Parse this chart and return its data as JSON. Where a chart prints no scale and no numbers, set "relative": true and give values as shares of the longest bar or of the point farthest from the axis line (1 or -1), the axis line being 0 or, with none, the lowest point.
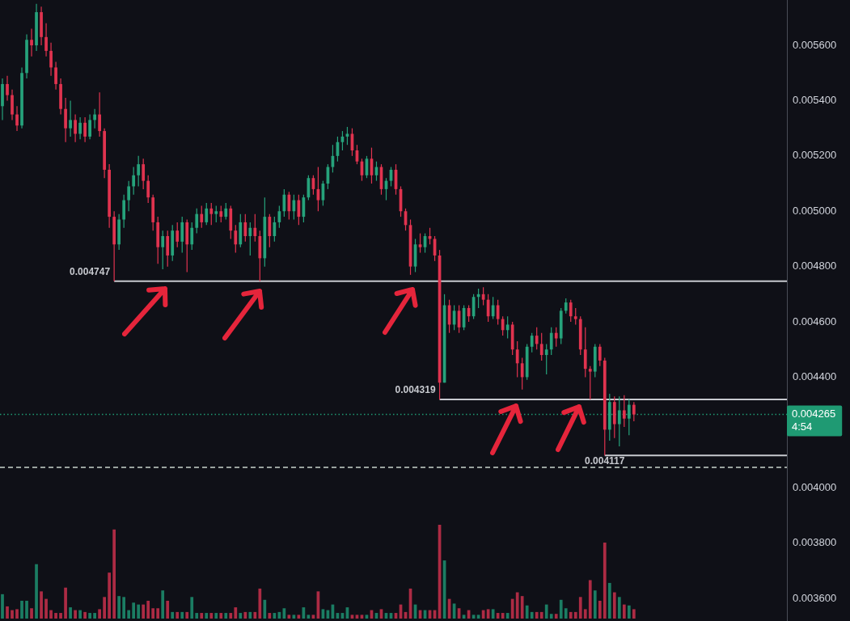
{
  "chart_data": [
    {
      "type": "candlestick",
      "tick_labels": "y",
      "categories": [
        null,
        null,
        null,
        null,
        null,
        null,
        null,
        null,
        null,
        null,
        null,
        null,
        null,
        null,
        null,
        null,
        null,
        null,
        null,
        null,
        null,
        null,
        null,
        null,
        null,
        null,
        null,
        null,
        null,
        null,
        null,
        null,
        null,
        null,
        null,
        null,
        null,
        null,
        null,
        null,
        null,
        null,
        null,
        null,
        null,
        null,
        null,
        null,
        null,
        null,
        null,
        null,
        null,
        null,
        null,
        null,
        null,
        null,
        null,
        null,
        null,
        null,
        null,
        null,
        null,
        null,
        null,
        null,
        null,
        null,
        null,
        null,
        null,
        null,
        null,
        null,
        null,
        null,
        null,
        null,
        null,
        null,
        null,
        null,
        null,
        null,
        null,
        null,
        null,
        null,
        null,
        null,
        null,
        null,
        null,
        null,
        null,
        null,
        null,
        null,
        null,
        null,
        null,
        null,
        null,
        null,
        null,
        null,
        null,
        null,
        null,
        null,
        null,
        null,
        null,
        null,
        null,
        null,
        null,
        null,
        null,
        null,
        null,
        null,
        null,
        null,
        null,
        null,
        null,
        null,
        null,
        null,
        null,
        null,
        null,
        null,
        null,
        null,
        null,
        null,
        null,
        null,
        null,
        null,
        null,
        null,
        null,
        null,
        null,
        null,
        null,
        null,
        null,
        null,
        null,
        null,
        null,
        null,
        null,
        null,
        null,
        null
      ],
      "ohlc": [
        [
          0.00538,
          0.00548,
          0.00533,
          0.00546
        ],
        [
          0.00546,
          0.00549,
          0.0054,
          0.00542
        ],
        [
          0.00542,
          0.00544,
          0.00533,
          0.00535
        ],
        [
          0.00535,
          0.00538,
          0.00529,
          0.00531
        ],
        [
          0.00531,
          0.00552,
          0.0053,
          0.0055
        ],
        [
          0.0055,
          0.00564,
          0.00548,
          0.00562
        ],
        [
          0.00562,
          0.00566,
          0.00556,
          0.0056
        ],
        [
          0.0056,
          0.00575,
          0.00558,
          0.00572
        ],
        [
          0.00572,
          0.00574,
          0.0056,
          0.00563
        ],
        [
          0.00563,
          0.00568,
          0.00556,
          0.00558
        ],
        [
          0.00558,
          0.00561,
          0.00549,
          0.00552
        ],
        [
          0.00552,
          0.00554,
          0.00544,
          0.00546
        ],
        [
          0.00546,
          0.00548,
          0.00535,
          0.00537
        ],
        [
          0.00537,
          0.00541,
          0.00525,
          0.0053
        ],
        [
          0.0053,
          0.0054,
          0.00527,
          0.00533
        ],
        [
          0.00533,
          0.00535,
          0.00525,
          0.00528
        ],
        [
          0.00528,
          0.00534,
          0.00526,
          0.00532
        ],
        [
          0.00532,
          0.00534,
          0.00525,
          0.00527
        ],
        [
          0.00527,
          0.00535,
          0.00526,
          0.00533
        ],
        [
          0.00533,
          0.00537,
          0.0053,
          0.00535
        ],
        [
          0.00535,
          0.00543,
          0.00527,
          0.00529
        ],
        [
          0.00529,
          0.0053,
          0.00512,
          0.00515
        ],
        [
          0.00515,
          0.00517,
          0.00494,
          0.00498
        ],
        [
          0.00498,
          0.005,
          0.004747,
          0.00488
        ],
        [
          0.00488,
          0.00499,
          0.00486,
          0.00497
        ],
        [
          0.00497,
          0.00506,
          0.00494,
          0.00504
        ],
        [
          0.00504,
          0.00511,
          0.005,
          0.00509
        ],
        [
          0.00509,
          0.00516,
          0.00506,
          0.00513
        ],
        [
          0.00513,
          0.0052,
          0.00509,
          0.00517
        ],
        [
          0.00517,
          0.00519,
          0.00508,
          0.00511
        ],
        [
          0.00511,
          0.00513,
          0.00503,
          0.00505
        ],
        [
          0.00505,
          0.00506,
          0.00493,
          0.00496
        ],
        [
          0.00496,
          0.00498,
          0.00481,
          0.00487
        ],
        [
          0.00487,
          0.00493,
          0.00479,
          0.00491
        ],
        [
          0.00491,
          0.00493,
          0.0048,
          0.00484
        ],
        [
          0.00484,
          0.00495,
          0.00482,
          0.00493
        ],
        [
          0.00493,
          0.00496,
          0.00487,
          0.00489
        ],
        [
          0.00489,
          0.00498,
          0.00485,
          0.00496
        ],
        [
          0.00496,
          0.00497,
          0.00478,
          0.00488
        ],
        [
          0.00488,
          0.00496,
          0.00486,
          0.00494
        ],
        [
          0.00494,
          0.00501,
          0.00492,
          0.00499
        ],
        [
          0.00499,
          0.00502,
          0.00494,
          0.00496
        ],
        [
          0.00496,
          0.00503,
          0.00495,
          0.00501
        ],
        [
          0.00501,
          0.00503,
          0.00495,
          0.00499
        ],
        [
          0.00499,
          0.00502,
          0.00496,
          0.005
        ],
        [
          0.005,
          0.00502,
          0.00496,
          0.00498
        ],
        [
          0.00498,
          0.00503,
          0.00497,
          0.00501
        ],
        [
          0.00501,
          0.00502,
          0.0049,
          0.00493
        ],
        [
          0.00493,
          0.00495,
          0.00485,
          0.00488
        ],
        [
          0.00488,
          0.00499,
          0.00487,
          0.00496
        ],
        [
          0.00496,
          0.00499,
          0.00489,
          0.00491
        ],
        [
          0.00491,
          0.00496,
          0.00484,
          0.00494
        ],
        [
          0.00494,
          0.00499,
          0.00489,
          0.00491
        ],
        [
          0.00491,
          0.00493,
          0.004747,
          0.00483
        ],
        [
          0.00483,
          0.00505,
          0.0048,
          0.00498
        ],
        [
          0.00498,
          0.00499,
          0.00487,
          0.00491
        ],
        [
          0.00491,
          0.00498,
          0.00489,
          0.00496
        ],
        [
          0.00496,
          0.00502,
          0.00494,
          0.005
        ],
        [
          0.005,
          0.00508,
          0.00498,
          0.00506
        ],
        [
          0.00506,
          0.00507,
          0.00497,
          0.005
        ],
        [
          0.005,
          0.00506,
          0.00497,
          0.00504
        ],
        [
          0.00504,
          0.00506,
          0.00495,
          0.00498
        ],
        [
          0.00498,
          0.00506,
          0.00496,
          0.00505
        ],
        [
          0.00505,
          0.00513,
          0.00504,
          0.00512
        ],
        [
          0.00512,
          0.00513,
          0.00506,
          0.00508
        ],
        [
          0.00508,
          0.00516,
          0.005,
          0.00504
        ],
        [
          0.00504,
          0.00511,
          0.00502,
          0.0051
        ],
        [
          0.0051,
          0.00517,
          0.00508,
          0.00516
        ],
        [
          0.00516,
          0.00524,
          0.00514,
          0.0052
        ],
        [
          0.0052,
          0.00527,
          0.00518,
          0.00525
        ],
        [
          0.00525,
          0.00529,
          0.00522,
          0.00527
        ],
        [
          0.00527,
          0.005305,
          0.00524,
          0.00528
        ],
        [
          0.00528,
          0.0053,
          0.0052,
          0.00522
        ],
        [
          0.00522,
          0.00524,
          0.00517,
          0.00518
        ],
        [
          0.00518,
          0.00519,
          0.00511,
          0.00513
        ],
        [
          0.00513,
          0.0052,
          0.00512,
          0.00519
        ],
        [
          0.00519,
          0.00523,
          0.0051,
          0.00513
        ],
        [
          0.00513,
          0.00518,
          0.00511,
          0.00516
        ],
        [
          0.00516,
          0.00517,
          0.00506,
          0.00508
        ],
        [
          0.00508,
          0.00512,
          0.00504,
          0.00511
        ],
        [
          0.00511,
          0.00516,
          0.00509,
          0.00515
        ],
        [
          0.00515,
          0.00517,
          0.00506,
          0.00508
        ],
        [
          0.00508,
          0.00509,
          0.00498,
          0.005
        ],
        [
          0.005,
          0.00501,
          0.00493,
          0.00495
        ],
        [
          0.00495,
          0.00497,
          0.00477,
          0.0048
        ],
        [
          0.0048,
          0.0049,
          0.00478,
          0.00488
        ],
        [
          0.00488,
          0.00492,
          0.00485,
          0.00487
        ],
        [
          0.00487,
          0.00492,
          0.00485,
          0.00491
        ],
        [
          0.00491,
          0.00494,
          0.00488,
          0.0049
        ],
        [
          0.0049,
          0.00491,
          0.00482,
          0.00484
        ],
        [
          0.00484,
          0.00486,
          0.004319,
          0.00438
        ],
        [
          0.00438,
          0.0047,
          0.00438,
          0.00466
        ],
        [
          0.00466,
          0.00468,
          0.00456,
          0.00459
        ],
        [
          0.00459,
          0.00466,
          0.00457,
          0.00464
        ],
        [
          0.00464,
          0.00466,
          0.00456,
          0.00458
        ],
        [
          0.00458,
          0.00466,
          0.00457,
          0.00465
        ],
        [
          0.00465,
          0.00466,
          0.0046,
          0.00462
        ],
        [
          0.00462,
          0.0047,
          0.00461,
          0.00469
        ],
        [
          0.00469,
          0.00472,
          0.00465,
          0.0047
        ],
        [
          0.0047,
          0.004725,
          0.00466,
          0.00468
        ],
        [
          0.00468,
          0.0047,
          0.0046,
          0.00462
        ],
        [
          0.00462,
          0.00469,
          0.00461,
          0.00466
        ],
        [
          0.00466,
          0.00468,
          0.00459,
          0.00461
        ],
        [
          0.00461,
          0.00462,
          0.00455,
          0.00457
        ],
        [
          0.00457,
          0.00462,
          0.00454,
          0.00459
        ],
        [
          0.00459,
          0.0046,
          0.00448,
          0.0045
        ],
        [
          0.0045,
          0.00453,
          0.0044,
          0.00445
        ],
        [
          0.00445,
          0.00447,
          0.004355,
          0.0044
        ],
        [
          0.0044,
          0.00452,
          0.00439,
          0.00451
        ],
        [
          0.00451,
          0.00456,
          0.00449,
          0.00455
        ],
        [
          0.00455,
          0.00458,
          0.0045,
          0.00452
        ],
        [
          0.00452,
          0.00456,
          0.00446,
          0.00448
        ],
        [
          0.00448,
          0.00452,
          0.00441,
          0.0045
        ],
        [
          0.0045,
          0.00458,
          0.00448,
          0.00456
        ],
        [
          0.00456,
          0.00458,
          0.00451,
          0.00454
        ],
        [
          0.00454,
          0.00465,
          0.00452,
          0.00464
        ],
        [
          0.00464,
          0.004685,
          0.00463,
          0.00467
        ],
        [
          0.00467,
          0.00468,
          0.0046,
          0.00462
        ],
        [
          0.00462,
          0.00465,
          0.00459,
          0.00461
        ],
        [
          0.00461,
          0.00462,
          0.00448,
          0.0045
        ],
        [
          0.0045,
          0.00458,
          0.0044,
          0.00443
        ],
        [
          0.00443,
          0.00444,
          0.004319,
          0.00442
        ],
        [
          0.00442,
          0.00452,
          0.0044,
          0.00451
        ],
        [
          0.00451,
          0.00452,
          0.00444,
          0.00446
        ],
        [
          0.00446,
          0.00447,
          0.004117,
          0.00421
        ],
        [
          0.00421,
          0.00434,
          0.00417,
          0.00431
        ],
        [
          0.00431,
          0.00433,
          0.00418,
          0.00423
        ],
        [
          0.00423,
          0.00433,
          0.00415,
          0.00428
        ],
        [
          0.00428,
          0.004335,
          0.00422,
          0.00425
        ],
        [
          0.00425,
          0.00432,
          0.00419,
          0.0043
        ],
        [
          0.0043,
          0.00431,
          0.00424,
          0.004265
        ],
        null,
        null,
        null,
        null,
        null,
        null,
        null,
        null,
        null,
        null,
        null,
        null,
        null,
        null,
        null,
        null,
        null,
        null,
        null,
        null,
        null,
        null,
        null,
        null,
        null,
        null,
        null,
        null,
        null,
        null,
        null
      ],
      "colors": [
        "#26a27b",
        "#e0334f",
        "#e0334f",
        "#e0334f",
        "#26a27b",
        "#26a27b",
        "#e0334f",
        "#26a27b",
        "#e0334f",
        "#e0334f",
        "#e0334f",
        "#e0334f",
        "#e0334f",
        "#e0334f",
        "#26a27b",
        "#e0334f",
        "#26a27b",
        "#e0334f",
        "#26a27b",
        "#26a27b",
        "#e0334f",
        "#e0334f",
        "#e0334f",
        "#e0334f",
        "#26a27b",
        "#26a27b",
        "#26a27b",
        "#26a27b",
        "#26a27b",
        "#e0334f",
        "#e0334f",
        "#e0334f",
        "#e0334f",
        "#26a27b",
        "#e0334f",
        "#26a27b",
        "#e0334f",
        "#26a27b",
        "#e0334f",
        "#26a27b",
        "#26a27b",
        "#e0334f",
        "#26a27b",
        "#e0334f",
        "#26a27b",
        "#e0334f",
        "#26a27b",
        "#e0334f",
        "#e0334f",
        "#26a27b",
        "#e0334f",
        "#26a27b",
        "#e0334f",
        "#e0334f",
        "#26a27b",
        "#e0334f",
        "#26a27b",
        "#26a27b",
        "#26a27b",
        "#e0334f",
        "#26a27b",
        "#e0334f",
        "#26a27b",
        "#26a27b",
        "#e0334f",
        "#e0334f",
        "#26a27b",
        "#26a27b",
        "#26a27b",
        "#26a27b",
        "#26a27b",
        "#26a27b",
        "#e0334f",
        "#e0334f",
        "#e0334f",
        "#26a27b",
        "#e0334f",
        "#26a27b",
        "#e0334f",
        "#26a27b",
        "#26a27b",
        "#e0334f",
        "#e0334f",
        "#e0334f",
        "#e0334f",
        "#26a27b",
        "#e0334f",
        "#26a27b",
        "#e0334f",
        "#e0334f",
        "#e0334f",
        "#26a27b",
        "#e0334f",
        "#26a27b",
        "#e0334f",
        "#26a27b",
        "#e0334f",
        "#26a27b",
        "#26a27b",
        "#e0334f",
        "#e0334f",
        "#26a27b",
        "#e0334f",
        "#e0334f",
        "#26a27b",
        "#e0334f",
        "#e0334f",
        "#e0334f",
        "#26a27b",
        "#26a27b",
        "#e0334f",
        "#e0334f",
        "#26a27b",
        "#26a27b",
        "#e0334f",
        "#26a27b",
        "#26a27b",
        "#e0334f",
        "#e0334f",
        "#e0334f",
        "#e0334f",
        "#e0334f",
        "#26a27b",
        "#e0334f",
        "#e0334f",
        "#26a27b",
        "#e0334f",
        "#26a27b",
        "#e0334f",
        "#26a27b",
        "#e0334f",
        null,
        null,
        null,
        null,
        null,
        null,
        null,
        null,
        null,
        null,
        null,
        null,
        null,
        null,
        null,
        null,
        null,
        null,
        null,
        null,
        null,
        null,
        null,
        null,
        null,
        null,
        null,
        null,
        null,
        null,
        null
      ],
      "ylim": [
        0.003518,
        0.005764
      ],
      "yticks": [
        {
          "value": 0.0036,
          "label": "0.003600"
        },
        {
          "value": 0.0038,
          "label": "0.003800"
        },
        {
          "value": 0.004,
          "label": "0.004000"
        },
        {
          "value": 0.0044,
          "label": "0.004400"
        },
        {
          "value": 0.0046,
          "label": "0.004600"
        },
        {
          "value": 0.0048,
          "label": "0.004800"
        },
        {
          "value": 0.005,
          "label": "0.005000"
        },
        {
          "value": 0.0052,
          "label": "0.005200"
        },
        {
          "value": 0.0054,
          "label": "0.005400"
        },
        {
          "value": 0.0056,
          "label": "0.005600"
        }
      ],
      "ref_lines": [
        {
          "axis": "y",
          "value": 0.004747,
          "label": "0.004747",
          "color": "#c7c9cf"
        },
        {
          "axis": "y",
          "value": 0.004319,
          "label": "0.004319",
          "color": "#c7c9cf"
        },
        {
          "axis": "y",
          "value": 0.004117,
          "label": "0.004117",
          "color": "#c7c9cf"
        },
        {
          "axis": "y",
          "value": 0.004265,
          "label": "0.004265",
          "color": "#1f9a73",
          "line_style": "dotted"
        },
        {
          "axis": "y",
          "value": 0.004074,
          "color": "#c9d3cd",
          "line_style": "dashed"
        }
      ],
      "annotations": [
        "4:54"
      ]
    },
    {
      "type": "bar",
      "relative": true,
      "tick_labels": false,
      "categories": [
        null,
        null,
        null,
        null,
        null,
        null,
        null,
        null,
        null,
        null,
        null,
        null,
        null,
        null,
        null,
        null,
        null,
        null,
        null,
        null,
        null,
        null,
        null,
        null,
        null,
        null,
        null,
        null,
        null,
        null,
        null,
        null,
        null,
        null,
        null,
        null,
        null,
        null,
        null,
        null,
        null,
        null,
        null,
        null,
        null,
        null,
        null,
        null,
        null,
        null,
        null,
        null,
        null,
        null,
        null,
        null,
        null,
        null,
        null,
        null,
        null,
        null,
        null,
        null,
        null,
        null,
        null,
        null,
        null,
        null,
        null,
        null,
        null,
        null,
        null,
        null,
        null,
        null,
        null,
        null,
        null,
        null,
        null,
        null,
        null,
        null,
        null,
        null,
        null,
        null,
        null,
        null,
        null,
        null,
        null,
        null,
        null,
        null,
        null,
        null,
        null,
        null,
        null,
        null,
        null,
        null,
        null,
        null,
        null,
        null,
        null,
        null,
        null,
        null,
        null,
        null,
        null,
        null,
        null,
        null,
        null,
        null,
        null,
        null,
        null,
        null,
        null,
        null,
        null,
        null,
        null,
        null,
        null,
        null,
        null,
        null,
        null,
        null,
        null,
        null,
        null,
        null,
        null,
        null,
        null,
        null,
        null,
        null,
        null,
        null,
        null,
        null,
        null,
        null,
        null,
        null,
        null,
        null,
        null,
        null,
        null,
        null
      ],
      "values": [
        0.26,
        0.13,
        0.09,
        0.1,
        0.19,
        0.19,
        0.11,
        0.58,
        0.29,
        0.21,
        0.09,
        0.06,
        0.06,
        0.33,
        0.12,
        0.09,
        0.09,
        0.07,
        0.06,
        0.06,
        0.1,
        0.23,
        0.49,
        0.95,
        0.24,
        0.23,
        0.09,
        0.17,
        0.15,
        0.15,
        0.19,
        0.11,
        0.11,
        0.3,
        0.19,
        0.07,
        0.07,
        0.07,
        0.07,
        0.23,
        0.06,
        0.06,
        0.06,
        0.06,
        0.06,
        0.06,
        0.06,
        0.06,
        0.12,
        0.06,
        0.07,
        0.07,
        0.07,
        0.32,
        0.2,
        0.06,
        0.06,
        0.07,
        0.11,
        0.04,
        0.04,
        0.04,
        0.12,
        0.04,
        0.04,
        0.29,
        0.1,
        0.09,
        0.15,
        0.06,
        0.06,
        0.12,
        0.04,
        0.04,
        0.04,
        0.04,
        0.09,
        0.06,
        0.1,
        0.06,
        0.06,
        0.06,
        0.15,
        0.07,
        0.32,
        0.15,
        0.09,
        0.09,
        0.09,
        0.09,
        1,
        0.62,
        0.21,
        0.16,
        0.11,
        0.04,
        0.09,
        0.04,
        0.04,
        0.09,
        0.1,
        0.1,
        0.06,
        0.06,
        0.06,
        0.21,
        0.28,
        0.24,
        0.14,
        0.07,
        0.07,
        0.07,
        0.15,
        0.05,
        0.05,
        0.2,
        0.11,
        0.07,
        0.07,
        0.23,
        0.1,
        0.41,
        0.3,
        0.19,
        0.81,
        0.38,
        0.28,
        0.23,
        0.15,
        0.14,
        0.1,
        null,
        null,
        null,
        null,
        null,
        null,
        null,
        null,
        null,
        null,
        null,
        null,
        null,
        null,
        null,
        null,
        null,
        null,
        null,
        null,
        null,
        null,
        null,
        null,
        null,
        null,
        null,
        null,
        null,
        null,
        null
      ],
      "colors": [
        "#1b7d63",
        "#ad2b44",
        "#ad2b44",
        "#ad2b44",
        "#1b7d63",
        "#1b7d63",
        "#ad2b44",
        "#1b7d63",
        "#ad2b44",
        "#ad2b44",
        "#ad2b44",
        "#ad2b44",
        "#ad2b44",
        "#ad2b44",
        "#1b7d63",
        "#ad2b44",
        "#1b7d63",
        "#ad2b44",
        "#1b7d63",
        "#1b7d63",
        "#ad2b44",
        "#ad2b44",
        "#ad2b44",
        "#ad2b44",
        "#1b7d63",
        "#1b7d63",
        "#1b7d63",
        "#1b7d63",
        "#1b7d63",
        "#ad2b44",
        "#ad2b44",
        "#ad2b44",
        "#ad2b44",
        "#1b7d63",
        "#ad2b44",
        "#1b7d63",
        "#ad2b44",
        "#1b7d63",
        "#ad2b44",
        "#1b7d63",
        "#1b7d63",
        "#ad2b44",
        "#1b7d63",
        "#ad2b44",
        "#1b7d63",
        "#ad2b44",
        "#1b7d63",
        "#ad2b44",
        "#ad2b44",
        "#1b7d63",
        "#ad2b44",
        "#1b7d63",
        "#ad2b44",
        "#ad2b44",
        "#1b7d63",
        "#ad2b44",
        "#1b7d63",
        "#1b7d63",
        "#1b7d63",
        "#ad2b44",
        "#1b7d63",
        "#ad2b44",
        "#1b7d63",
        "#1b7d63",
        "#ad2b44",
        "#ad2b44",
        "#1b7d63",
        "#1b7d63",
        "#1b7d63",
        "#1b7d63",
        "#1b7d63",
        "#1b7d63",
        "#ad2b44",
        "#ad2b44",
        "#ad2b44",
        "#1b7d63",
        "#ad2b44",
        "#1b7d63",
        "#ad2b44",
        "#1b7d63",
        "#1b7d63",
        "#ad2b44",
        "#ad2b44",
        "#ad2b44",
        "#ad2b44",
        "#1b7d63",
        "#ad2b44",
        "#1b7d63",
        "#ad2b44",
        "#ad2b44",
        "#ad2b44",
        "#1b7d63",
        "#ad2b44",
        "#1b7d63",
        "#ad2b44",
        "#1b7d63",
        "#ad2b44",
        "#1b7d63",
        "#1b7d63",
        "#ad2b44",
        "#ad2b44",
        "#1b7d63",
        "#ad2b44",
        "#ad2b44",
        "#1b7d63",
        "#ad2b44",
        "#ad2b44",
        "#ad2b44",
        "#1b7d63",
        "#1b7d63",
        "#ad2b44",
        "#ad2b44",
        "#1b7d63",
        "#1b7d63",
        "#ad2b44",
        "#1b7d63",
        "#1b7d63",
        "#ad2b44",
        "#ad2b44",
        "#ad2b44",
        "#ad2b44",
        "#ad2b44",
        "#1b7d63",
        "#ad2b44",
        "#ad2b44",
        "#1b7d63",
        "#ad2b44",
        "#1b7d63",
        "#ad2b44",
        "#1b7d63",
        "#ad2b44",
        null,
        null,
        null,
        null,
        null,
        null,
        null,
        null,
        null,
        null,
        null,
        null,
        null,
        null,
        null,
        null,
        null,
        null,
        null,
        null,
        null,
        null,
        null,
        null,
        null,
        null,
        null,
        null,
        null,
        null,
        null
      ]
    }
  ]
}
